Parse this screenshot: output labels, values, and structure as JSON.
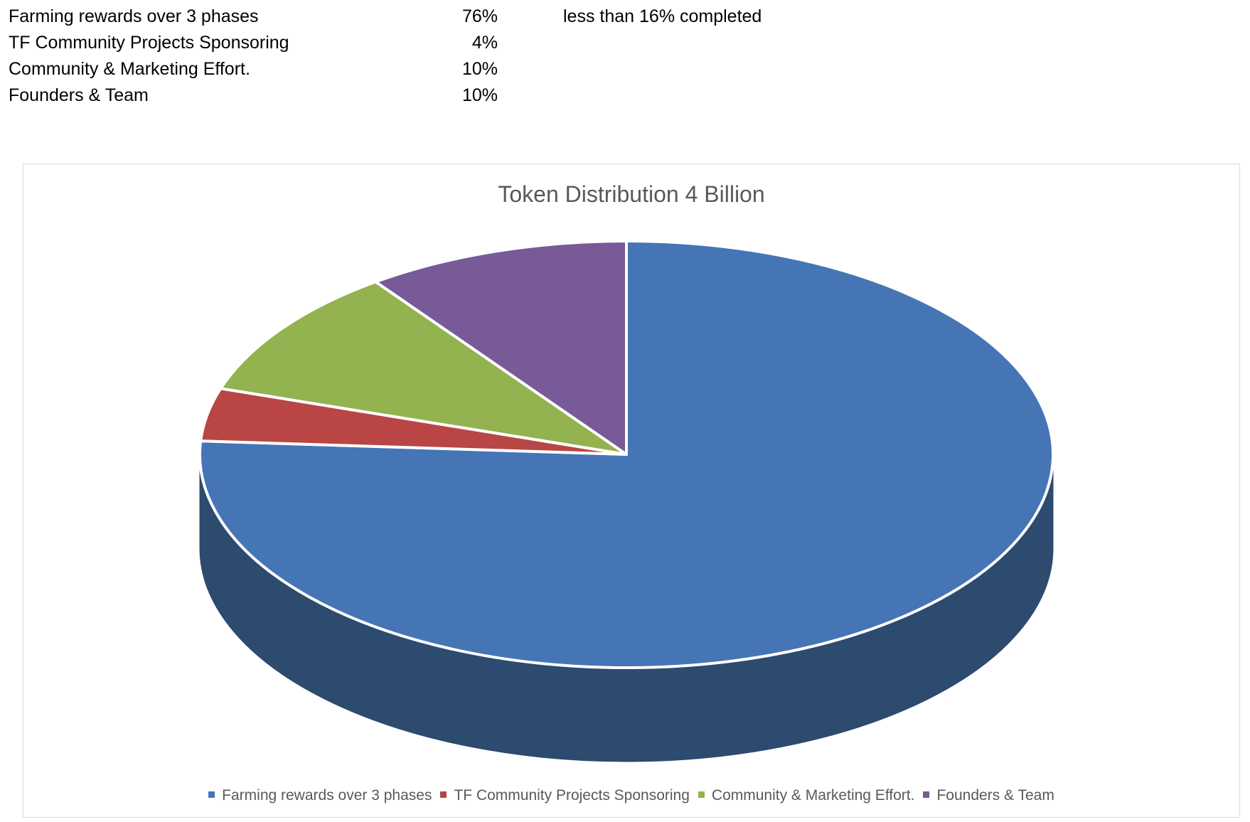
{
  "table": {
    "rows": [
      {
        "label": "Farming rewards over 3 phases",
        "percent": "76%",
        "note": "less than 16% completed"
      },
      {
        "label": "TF Community Projects Sponsoring",
        "percent": "4%"
      },
      {
        "label": "Community & Marketing Effort.",
        "percent": "10%"
      },
      {
        "label": "Founders & Team",
        "percent": "10%"
      }
    ]
  },
  "chart_data": {
    "type": "pie",
    "style": "3d",
    "title": "Token Distribution 4 Billion",
    "legend_position": "bottom",
    "slices": [
      {
        "name": "Farming rewards over 3 phases",
        "value": 76,
        "color": "#4675B6",
        "side_color": "#2D4A6F"
      },
      {
        "name": "TF Community Projects Sponsoring",
        "value": 4,
        "color": "#B94644",
        "side_color": "#7A2C2A"
      },
      {
        "name": "Community & Marketing Effort.",
        "value": 10,
        "color": "#93B250",
        "side_color": "#607533"
      },
      {
        "name": "Founders & Team",
        "value": 10,
        "color": "#775A97",
        "side_color": "#4C3A62"
      }
    ]
  }
}
